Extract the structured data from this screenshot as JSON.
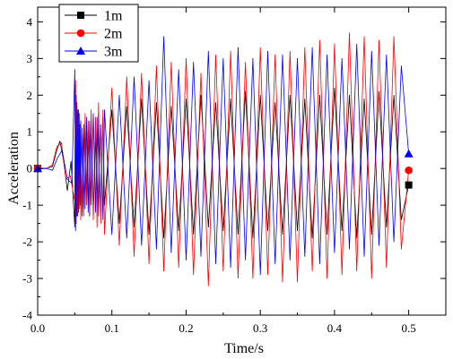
{
  "chart_data": {
    "type": "line",
    "title": "",
    "xlabel": "Time/s",
    "ylabel": "Acceleration",
    "xlim": [
      0,
      0.55
    ],
    "ylim": [
      -4,
      4.4
    ],
    "x_ticks": [
      0.0,
      0.1,
      0.2,
      0.3,
      0.4,
      0.5
    ],
    "x_tick_labels": [
      "0.0",
      "0.1",
      "0.2",
      "0.3",
      "0.4",
      "0.5"
    ],
    "y_ticks": [
      -4,
      -3,
      -2,
      -1,
      0,
      1,
      2,
      3,
      4
    ],
    "y_tick_labels": [
      "-4",
      "-3",
      "-2",
      "-1",
      "0",
      "1",
      "2",
      "3",
      "4"
    ],
    "grid": false,
    "legend_position": "top-left",
    "colors": {
      "1m": "#000000",
      "2m": "#ff0000",
      "3m": "#0000ff"
    },
    "series": [
      {
        "name": "1m",
        "color": "#000000",
        "marker": "square",
        "end_marker": [
          0.5,
          -0.45
        ],
        "x": [
          0,
          0.01,
          0.02,
          0.025,
          0.03,
          0.035,
          0.04,
          0.045,
          0.05,
          0.051,
          0.052,
          0.053,
          0.054,
          0.055,
          0.056,
          0.057,
          0.058,
          0.06,
          0.062,
          0.064,
          0.066,
          0.068,
          0.07,
          0.072,
          0.075,
          0.078,
          0.08,
          0.082,
          0.085,
          0.088,
          0.09,
          0.1,
          0.11,
          0.12,
          0.13,
          0.14,
          0.15,
          0.16,
          0.17,
          0.18,
          0.19,
          0.2,
          0.21,
          0.22,
          0.23,
          0.24,
          0.25,
          0.26,
          0.27,
          0.28,
          0.29,
          0.3,
          0.31,
          0.32,
          0.33,
          0.34,
          0.35,
          0.36,
          0.37,
          0.38,
          0.39,
          0.4,
          0.41,
          0.42,
          0.43,
          0.44,
          0.45,
          0.46,
          0.47,
          0.48,
          0.49,
          0.5
        ],
        "y": [
          0,
          0,
          0.05,
          0.45,
          0.75,
          0.2,
          -0.6,
          0.2,
          -1.6,
          2.3,
          -1.0,
          1.5,
          -1.3,
          1.6,
          -0.9,
          1.2,
          -1.2,
          0.9,
          -1.1,
          1.3,
          -0.8,
          1.0,
          -1.3,
          1.2,
          -1.1,
          0.9,
          -1.0,
          1.1,
          -1.2,
          1.4,
          -1.0,
          1.6,
          -1.5,
          1.7,
          -1.6,
          1.9,
          -1.8,
          1.8,
          -1.9,
          1.7,
          -1.7,
          1.9,
          -1.8,
          2.0,
          -1.6,
          1.8,
          -1.7,
          1.9,
          -1.8,
          2.1,
          -1.9,
          2.0,
          -1.7,
          1.8,
          -1.8,
          2.0,
          -1.7,
          1.9,
          -1.9,
          2.0,
          -1.8,
          2.2,
          -1.7,
          2.0,
          -1.9,
          1.9,
          -1.8,
          2.1,
          -1.6,
          2.0,
          -1.4,
          -0.45
        ]
      },
      {
        "name": "2m",
        "color": "#ff0000",
        "marker": "circle",
        "end_marker": [
          0.5,
          -0.05
        ],
        "x": [
          0,
          0.012,
          0.02,
          0.026,
          0.032,
          0.038,
          0.044,
          0.05,
          0.051,
          0.052,
          0.053,
          0.054,
          0.055,
          0.056,
          0.057,
          0.058,
          0.06,
          0.062,
          0.064,
          0.066,
          0.068,
          0.07,
          0.072,
          0.075,
          0.078,
          0.08,
          0.082,
          0.085,
          0.088,
          0.09,
          0.1,
          0.11,
          0.12,
          0.13,
          0.14,
          0.15,
          0.16,
          0.17,
          0.18,
          0.19,
          0.2,
          0.21,
          0.22,
          0.23,
          0.24,
          0.25,
          0.26,
          0.27,
          0.28,
          0.29,
          0.3,
          0.31,
          0.32,
          0.33,
          0.34,
          0.35,
          0.36,
          0.37,
          0.38,
          0.39,
          0.4,
          0.41,
          0.42,
          0.43,
          0.44,
          0.45,
          0.46,
          0.47,
          0.48,
          0.49,
          0.5
        ],
        "y": [
          0,
          0,
          0.1,
          0.6,
          0.7,
          -0.3,
          -0.2,
          -0.9,
          2.4,
          -1.5,
          1.8,
          -1.2,
          1.4,
          -1.1,
          1.2,
          -1.4,
          1.1,
          -1.3,
          1.5,
          -1.0,
          1.3,
          -1.2,
          1.6,
          -1.4,
          1.4,
          -1.6,
          1.8,
          -1.5,
          1.6,
          -1.8,
          2.2,
          -2.1,
          2.5,
          -2.4,
          2.6,
          -2.6,
          2.8,
          -2.8,
          2.9,
          -2.7,
          3.0,
          -2.9,
          2.6,
          -3.2,
          3.1,
          -2.8,
          3.2,
          -3.0,
          2.9,
          -3.0,
          3.3,
          -2.9,
          3.1,
          -3.1,
          3.2,
          -3.1,
          3.3,
          -2.8,
          3.5,
          -3.0,
          3.4,
          -2.9,
          3.7,
          -2.8,
          3.6,
          -3.0,
          3.5,
          -2.7,
          3.6,
          -2.2,
          -0.05
        ]
      },
      {
        "name": "3m",
        "color": "#0000ff",
        "marker": "triangle",
        "end_marker": [
          0.5,
          0.4
        ],
        "x": [
          0,
          0.012,
          0.02,
          0.027,
          0.033,
          0.04,
          0.046,
          0.05,
          0.051,
          0.052,
          0.053,
          0.054,
          0.055,
          0.056,
          0.057,
          0.058,
          0.06,
          0.062,
          0.064,
          0.066,
          0.068,
          0.07,
          0.072,
          0.075,
          0.078,
          0.08,
          0.082,
          0.085,
          0.088,
          0.09,
          0.1,
          0.11,
          0.12,
          0.13,
          0.14,
          0.15,
          0.16,
          0.17,
          0.18,
          0.19,
          0.2,
          0.21,
          0.22,
          0.23,
          0.24,
          0.25,
          0.26,
          0.27,
          0.28,
          0.29,
          0.3,
          0.31,
          0.32,
          0.33,
          0.34,
          0.35,
          0.36,
          0.37,
          0.38,
          0.39,
          0.4,
          0.41,
          0.42,
          0.43,
          0.44,
          0.45,
          0.46,
          0.47,
          0.48,
          0.49,
          0.5
        ],
        "y": [
          0,
          0,
          -0.05,
          0.3,
          0.5,
          -0.3,
          -0.4,
          2.7,
          -1.7,
          2.0,
          -1.3,
          1.6,
          -1.2,
          1.5,
          -1.0,
          1.3,
          -1.3,
          1.2,
          -1.1,
          1.4,
          -1.2,
          1.3,
          -1.0,
          1.5,
          -1.2,
          1.4,
          -1.3,
          1.2,
          -1.4,
          1.6,
          -1.8,
          2.0,
          -1.9,
          2.5,
          -2.1,
          2.4,
          -2.2,
          3.6,
          -2.3,
          2.7,
          -2.5,
          2.9,
          -2.4,
          3.2,
          -2.6,
          3.0,
          -2.7,
          3.3,
          -2.5,
          3.0,
          -2.9,
          3.2,
          -2.6,
          3.1,
          -2.5,
          3.0,
          -2.4,
          3.3,
          -2.6,
          3.1,
          -2.3,
          3.0,
          -2.2,
          3.4,
          -2.4,
          3.2,
          -2.1,
          3.1,
          -2.0,
          2.8,
          0.4
        ]
      }
    ]
  }
}
